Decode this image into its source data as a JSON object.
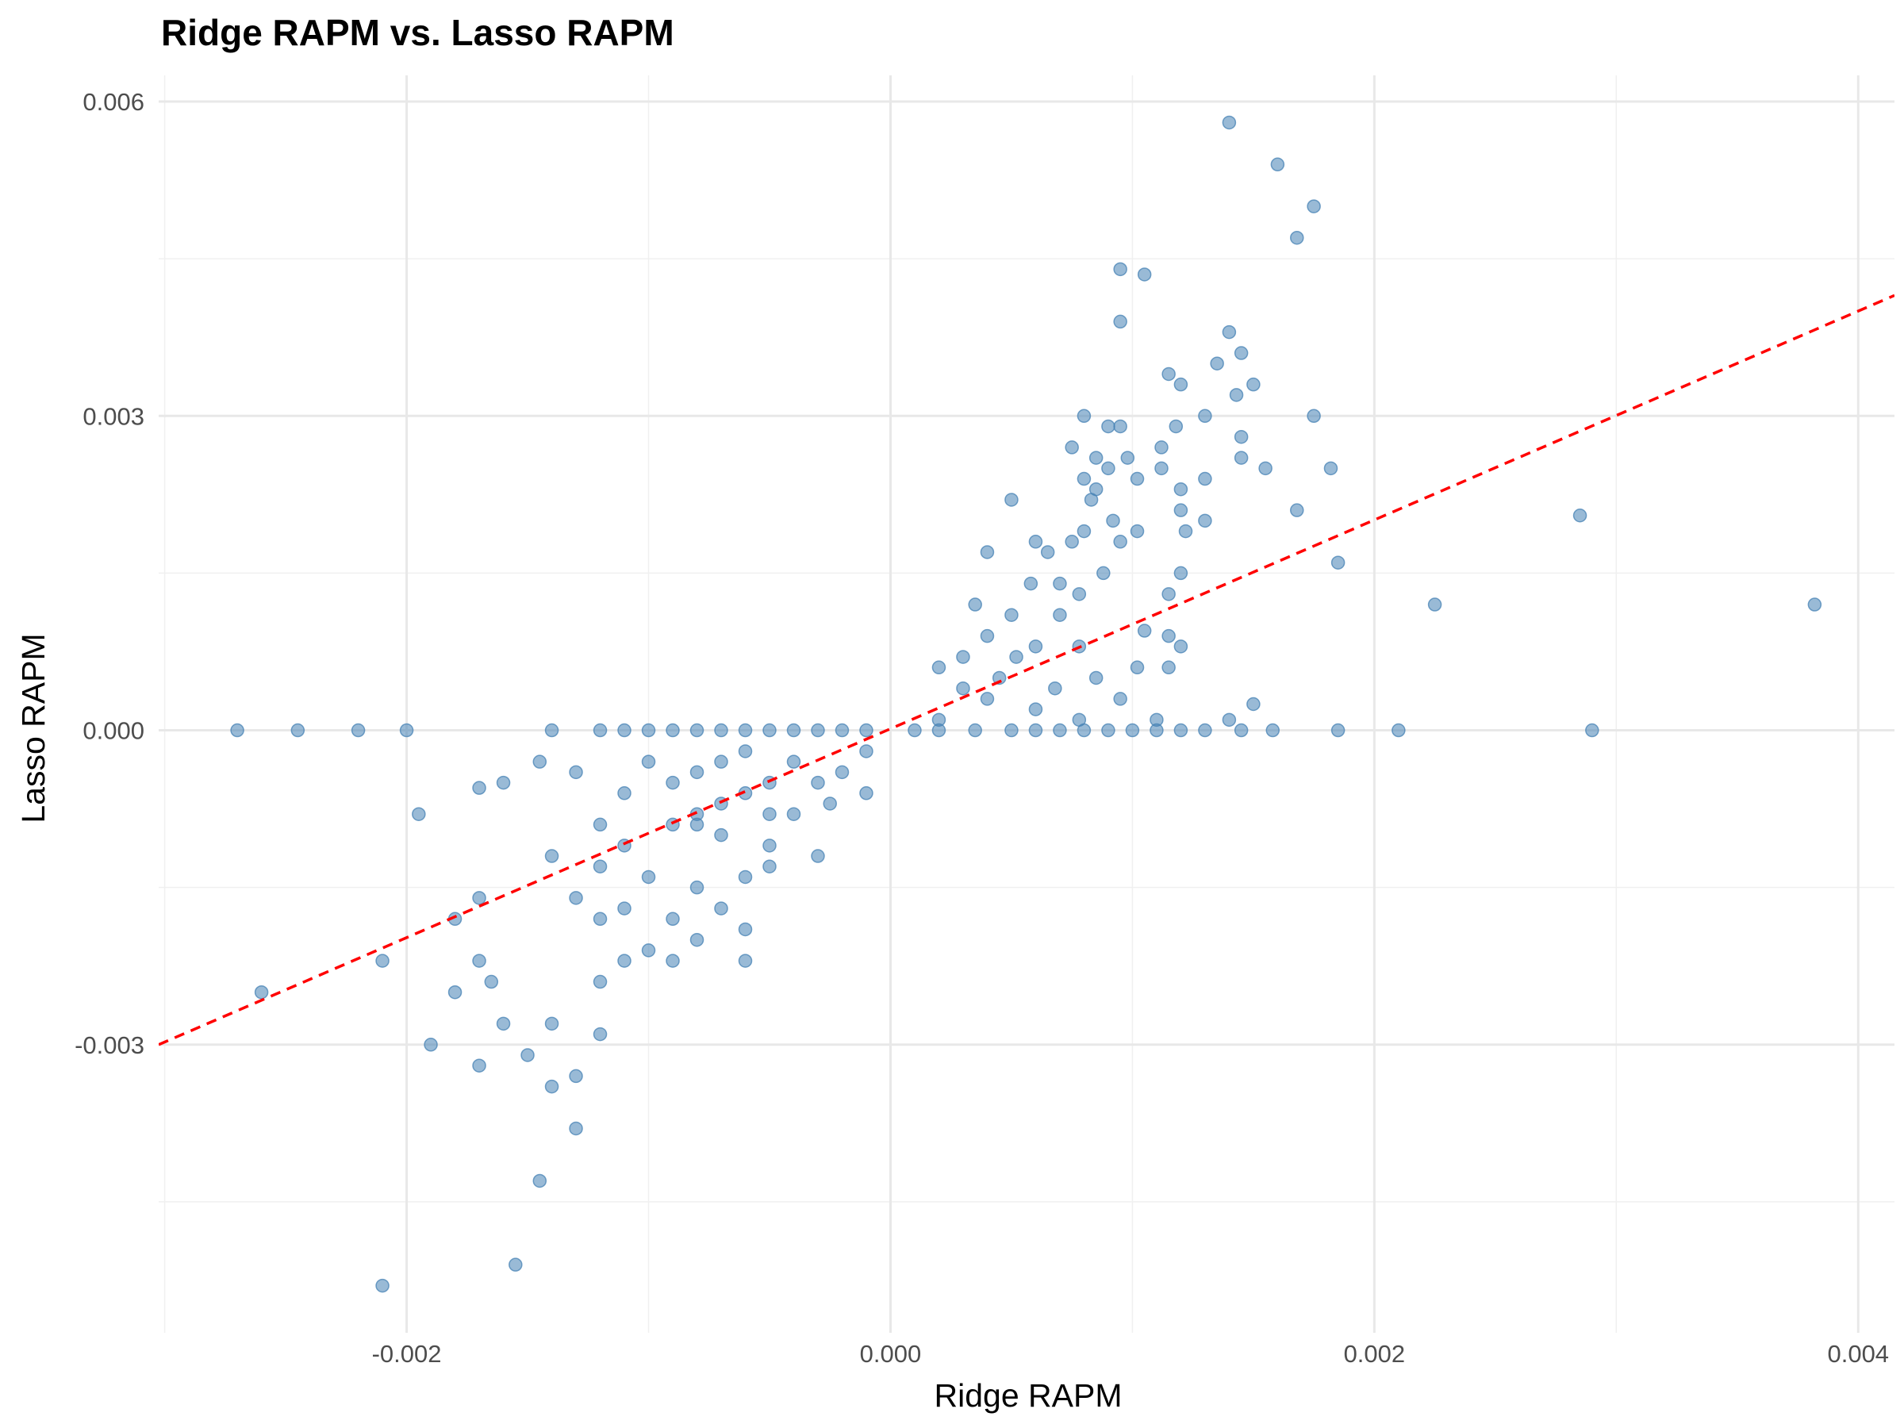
{
  "chart_data": {
    "type": "scatter",
    "title": "Ridge RAPM vs. Lasso RAPM",
    "xlabel": "Ridge RAPM",
    "ylabel": "Lasso RAPM",
    "xlim": [
      -0.003025,
      0.00415
    ],
    "ylim": [
      -0.00575,
      0.00625
    ],
    "x_ticks": [
      -0.002,
      0.0,
      0.002,
      0.004
    ],
    "x_tick_labels": [
      "-0.002",
      "0.000",
      "0.002",
      "0.004"
    ],
    "y_ticks": [
      -0.003,
      0.0,
      0.003,
      0.006
    ],
    "y_tick_labels": [
      "-0.003",
      "0.000",
      "0.003",
      "0.006"
    ],
    "grid": true,
    "point_color": "#4682B4",
    "reference_line": {
      "style": "dashed",
      "color": "#FF0000",
      "points": [
        [
          -0.003025,
          -0.003
        ],
        [
          0.00415,
          0.00415
        ]
      ]
    },
    "series": [
      {
        "points": [
          [
            0.0014,
            0.0058
          ],
          [
            0.0016,
            0.0054
          ],
          [
            0.00175,
            0.005
          ],
          [
            0.00168,
            0.0047
          ],
          [
            0.00095,
            0.0044
          ],
          [
            0.00105,
            0.00435
          ],
          [
            0.00095,
            0.0039
          ],
          [
            0.0014,
            0.0038
          ],
          [
            0.00145,
            0.0036
          ],
          [
            0.00135,
            0.0035
          ],
          [
            0.0015,
            0.0033
          ],
          [
            0.00143,
            0.0032
          ],
          [
            0.00115,
            0.0034
          ],
          [
            0.0012,
            0.0033
          ],
          [
            0.0008,
            0.003
          ],
          [
            0.0013,
            0.003
          ],
          [
            0.00175,
            0.003
          ],
          [
            0.0009,
            0.0029
          ],
          [
            0.00095,
            0.0029
          ],
          [
            0.00118,
            0.0029
          ],
          [
            0.00145,
            0.0028
          ],
          [
            0.00075,
            0.0027
          ],
          [
            0.00112,
            0.0027
          ],
          [
            0.00085,
            0.0026
          ],
          [
            0.00098,
            0.0026
          ],
          [
            0.00145,
            0.0026
          ],
          [
            0.0009,
            0.0025
          ],
          [
            0.00112,
            0.0025
          ],
          [
            0.00155,
            0.0025
          ],
          [
            0.00182,
            0.0025
          ],
          [
            0.0008,
            0.0024
          ],
          [
            0.00102,
            0.0024
          ],
          [
            0.0013,
            0.0024
          ],
          [
            0.00085,
            0.0023
          ],
          [
            0.0012,
            0.0023
          ],
          [
            0.0005,
            0.0022
          ],
          [
            0.00083,
            0.0022
          ],
          [
            0.00168,
            0.0021
          ],
          [
            0.0012,
            0.0021
          ],
          [
            0.00092,
            0.002
          ],
          [
            0.0013,
            0.002
          ],
          [
            0.00285,
            0.00205
          ],
          [
            0.0008,
            0.0019
          ],
          [
            0.00102,
            0.0019
          ],
          [
            0.00122,
            0.0019
          ],
          [
            0.0006,
            0.0018
          ],
          [
            0.00095,
            0.0018
          ],
          [
            0.00075,
            0.0018
          ],
          [
            0.00065,
            0.0017
          ],
          [
            0.0004,
            0.0017
          ],
          [
            0.0012,
            0.0015
          ],
          [
            0.00185,
            0.0016
          ],
          [
            0.00088,
            0.0015
          ],
          [
            0.00058,
            0.0014
          ],
          [
            0.0007,
            0.0014
          ],
          [
            0.00078,
            0.0013
          ],
          [
            0.00115,
            0.0013
          ],
          [
            0.00225,
            0.0012
          ],
          [
            0.00382,
            0.0012
          ],
          [
            0.00035,
            0.0012
          ],
          [
            0.0005,
            0.0011
          ],
          [
            0.0007,
            0.0011
          ],
          [
            0.00105,
            0.00095
          ],
          [
            0.00115,
            0.0009
          ],
          [
            0.0004,
            0.0009
          ],
          [
            0.0006,
            0.0008
          ],
          [
            0.00078,
            0.0008
          ],
          [
            0.0012,
            0.0008
          ],
          [
            0.0003,
            0.0007
          ],
          [
            0.00052,
            0.0007
          ],
          [
            0.00102,
            0.0006
          ],
          [
            0.00115,
            0.0006
          ],
          [
            0.0002,
            0.0006
          ],
          [
            0.00045,
            0.0005
          ],
          [
            0.00085,
            0.0005
          ],
          [
            0.0003,
            0.0004
          ],
          [
            0.00068,
            0.0004
          ],
          [
            0.00095,
            0.0003
          ],
          [
            0.0004,
            0.0003
          ],
          [
            0.0006,
            0.0002
          ],
          [
            0.0002,
            0.0001
          ],
          [
            0.00078,
            0.0001
          ],
          [
            0.0011,
            0.0001
          ],
          [
            0.0014,
            0.0001
          ],
          [
            0.0015,
            0.00025
          ],
          [
            0.00035,
            0.0
          ],
          [
            0.0005,
            0.0
          ],
          [
            0.0006,
            0.0
          ],
          [
            0.0007,
            0.0
          ],
          [
            0.0008,
            0.0
          ],
          [
            0.0009,
            0.0
          ],
          [
            0.001,
            0.0
          ],
          [
            0.0011,
            0.0
          ],
          [
            0.0012,
            0.0
          ],
          [
            0.0013,
            0.0
          ],
          [
            0.00145,
            0.0
          ],
          [
            0.00158,
            0.0
          ],
          [
            0.00185,
            0.0
          ],
          [
            0.0021,
            0.0
          ],
          [
            0.0029,
            0.0
          ],
          [
            0.0002,
            0.0
          ],
          [
            0.0001,
            0.0
          ],
          [
            -0.0001,
            0.0
          ],
          [
            -0.0002,
            0.0
          ],
          [
            -0.0003,
            0.0
          ],
          [
            -0.0004,
            0.0
          ],
          [
            -0.0005,
            0.0
          ],
          [
            -0.0006,
            0.0
          ],
          [
            -0.0007,
            0.0
          ],
          [
            -0.0008,
            0.0
          ],
          [
            -0.0009,
            0.0
          ],
          [
            -0.001,
            0.0
          ],
          [
            -0.0011,
            0.0
          ],
          [
            -0.0012,
            0.0
          ],
          [
            -0.0014,
            0.0
          ],
          [
            -0.0027,
            0.0
          ],
          [
            -0.00245,
            0.0
          ],
          [
            -0.0022,
            0.0
          ],
          [
            -0.002,
            0.0
          ],
          [
            -0.0001,
            -0.0002
          ],
          [
            -0.0002,
            -0.0004
          ],
          [
            -0.0004,
            -0.0003
          ],
          [
            -0.0006,
            -0.0002
          ],
          [
            -0.0005,
            -0.0005
          ],
          [
            -0.0007,
            -0.0003
          ],
          [
            -0.0008,
            -0.0004
          ],
          [
            -0.0009,
            -0.0005
          ],
          [
            -0.001,
            -0.0003
          ],
          [
            -0.0011,
            -0.0006
          ],
          [
            -0.00025,
            -0.0007
          ],
          [
            -0.0004,
            -0.0008
          ],
          [
            -0.0006,
            -0.0006
          ],
          [
            -0.0008,
            -0.0008
          ],
          [
            -0.0009,
            -0.0009
          ],
          [
            -0.0007,
            -0.001
          ],
          [
            -0.0005,
            -0.0011
          ],
          [
            -0.0011,
            -0.0011
          ],
          [
            -0.0012,
            -0.0009
          ],
          [
            -0.00145,
            -0.0003
          ],
          [
            -0.0013,
            -0.0004
          ],
          [
            -0.0017,
            -0.00055
          ],
          [
            -0.0016,
            -0.0005
          ],
          [
            -0.0005,
            -0.0013
          ],
          [
            -0.0003,
            -0.0012
          ],
          [
            -0.0006,
            -0.0014
          ],
          [
            -0.0008,
            -0.0015
          ],
          [
            -0.001,
            -0.0014
          ],
          [
            -0.0012,
            -0.0013
          ],
          [
            -0.0013,
            -0.0016
          ],
          [
            -0.0014,
            -0.0012
          ],
          [
            -0.0017,
            -0.0016
          ],
          [
            -0.0018,
            -0.0018
          ],
          [
            -0.00195,
            -0.0008
          ],
          [
            -0.0007,
            -0.0017
          ],
          [
            -0.0009,
            -0.0018
          ],
          [
            -0.0011,
            -0.0017
          ],
          [
            -0.0012,
            -0.0018
          ],
          [
            -0.0006,
            -0.0019
          ],
          [
            -0.0008,
            -0.002
          ],
          [
            -0.001,
            -0.0021
          ],
          [
            -0.0011,
            -0.0022
          ],
          [
            -0.0006,
            -0.0022
          ],
          [
            -0.0009,
            -0.0022
          ],
          [
            -0.0012,
            -0.0024
          ],
          [
            -0.0017,
            -0.0022
          ],
          [
            -0.0018,
            -0.0025
          ],
          [
            -0.00165,
            -0.0024
          ],
          [
            -0.0021,
            -0.0022
          ],
          [
            -0.0026,
            -0.0025
          ],
          [
            -0.0014,
            -0.0028
          ],
          [
            -0.0015,
            -0.0031
          ],
          [
            -0.0016,
            -0.0028
          ],
          [
            -0.0019,
            -0.003
          ],
          [
            -0.0017,
            -0.0032
          ],
          [
            -0.0012,
            -0.0029
          ],
          [
            -0.0013,
            -0.0033
          ],
          [
            -0.0014,
            -0.0034
          ],
          [
            -0.0013,
            -0.0038
          ],
          [
            -0.00145,
            -0.0043
          ],
          [
            -0.00155,
            -0.0051
          ],
          [
            -0.0021,
            -0.0053
          ],
          [
            -0.0008,
            -0.0009
          ],
          [
            -0.0007,
            -0.0007
          ],
          [
            -0.0005,
            -0.0008
          ],
          [
            -0.0003,
            -0.0005
          ],
          [
            -0.0001,
            -0.0006
          ]
        ]
      }
    ]
  }
}
